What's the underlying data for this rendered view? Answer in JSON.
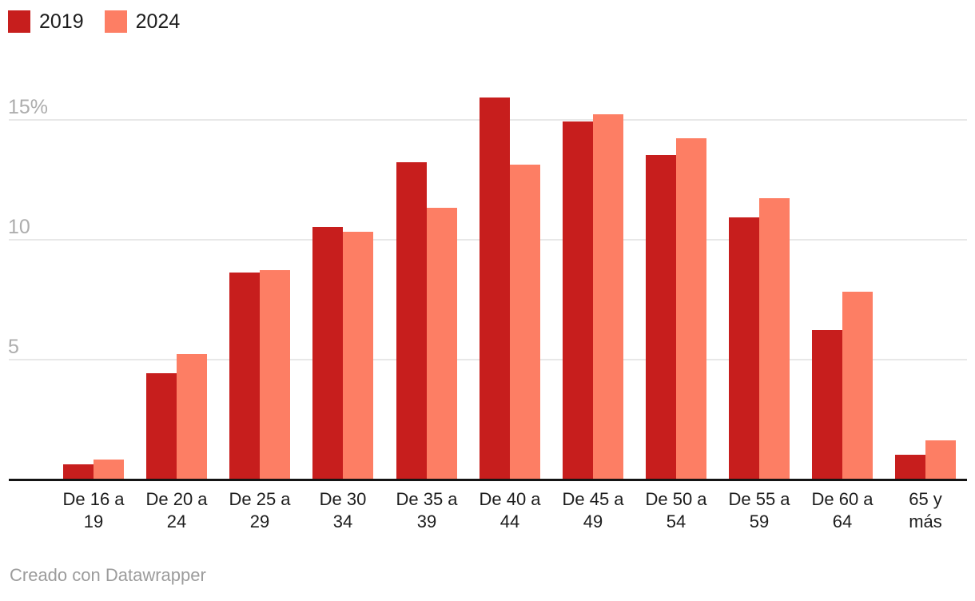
{
  "legend": {
    "items": [
      {
        "label": "2019",
        "color": "#c71e1d"
      },
      {
        "label": "2024",
        "color": "#fd7e64"
      }
    ]
  },
  "chart_data": {
    "type": "bar",
    "subtype": "grouped-column",
    "categories": [
      [
        "De 16 a",
        "19"
      ],
      [
        "De 20 a",
        "24"
      ],
      [
        "De 25 a",
        "29"
      ],
      [
        "De 30",
        "34"
      ],
      [
        "De 35 a",
        "39"
      ],
      [
        "De 40 a",
        "44"
      ],
      [
        "De 45 a",
        "49"
      ],
      [
        "De 50 a",
        "54"
      ],
      [
        "De 55 a",
        "59"
      ],
      [
        "De 60 a",
        "64"
      ],
      [
        "65 y",
        "más"
      ]
    ],
    "series": [
      {
        "name": "2019",
        "color": "#c71e1d",
        "values": [
          0.6,
          4.4,
          8.6,
          10.5,
          13.2,
          15.9,
          14.9,
          13.5,
          10.9,
          6.2,
          1.0
        ]
      },
      {
        "name": "2024",
        "color": "#fd7e64",
        "values": [
          0.8,
          5.2,
          8.7,
          10.3,
          11.3,
          13.1,
          15.2,
          14.2,
          11.7,
          7.8,
          1.6
        ]
      }
    ],
    "unit": "%",
    "y_ticks": [
      {
        "value": 5,
        "label": "5"
      },
      {
        "value": 10,
        "label": "10"
      },
      {
        "value": 15,
        "label": "15%"
      }
    ],
    "ylim": [
      0,
      17
    ],
    "grid": true,
    "legend_position": "top-left",
    "axis_color": "#141414",
    "grid_color": "#e8e8e8"
  },
  "footer": {
    "credit": "Creado con Datawrapper"
  }
}
